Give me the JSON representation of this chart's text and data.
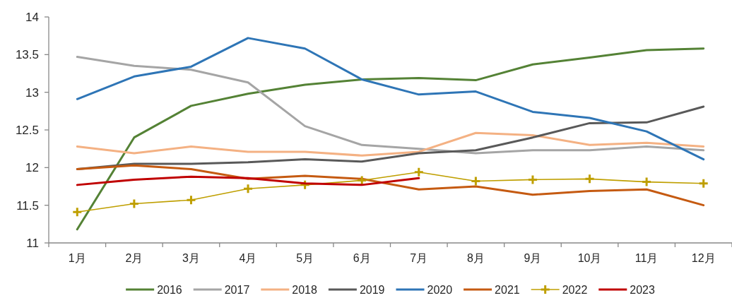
{
  "chart_data": {
    "type": "line",
    "categories": [
      "1月",
      "2月",
      "3月",
      "4月",
      "5月",
      "6月",
      "7月",
      "8月",
      "9月",
      "10月",
      "11月",
      "12月"
    ],
    "ylim": [
      11,
      14
    ],
    "yticks": [
      11,
      11.5,
      12,
      12.5,
      13,
      13.5,
      14
    ],
    "grid": false,
    "legend": "bottom",
    "series": [
      {
        "name": "2016",
        "color": "#548235",
        "values": [
          11.18,
          12.4,
          12.82,
          12.98,
          13.1,
          13.17,
          13.19,
          13.16,
          13.37,
          13.46,
          13.56,
          13.58
        ]
      },
      {
        "name": "2017",
        "color": "#a5a5a5",
        "values": [
          13.47,
          13.35,
          13.3,
          13.13,
          12.55,
          12.3,
          12.25,
          12.19,
          12.23,
          12.23,
          12.28,
          12.23
        ]
      },
      {
        "name": "2018",
        "color": "#f4b183",
        "values": [
          12.28,
          12.19,
          12.28,
          12.21,
          12.21,
          12.16,
          12.21,
          12.46,
          12.43,
          12.3,
          12.33,
          12.28
        ]
      },
      {
        "name": "2019",
        "color": "#595959",
        "values": [
          11.98,
          12.05,
          12.05,
          12.07,
          12.11,
          12.08,
          12.19,
          12.23,
          12.4,
          12.59,
          12.6,
          12.81
        ]
      },
      {
        "name": "2020",
        "color": "#2e75b6",
        "values": [
          12.91,
          13.21,
          13.34,
          13.72,
          13.58,
          13.17,
          12.97,
          13.01,
          12.74,
          12.66,
          12.48,
          12.11
        ]
      },
      {
        "name": "2021",
        "color": "#c55a11",
        "values": [
          11.98,
          12.03,
          11.98,
          11.85,
          11.89,
          11.85,
          11.71,
          11.75,
          11.64,
          11.69,
          11.71,
          11.5
        ]
      },
      {
        "name": "2022",
        "color": "#bf9f00",
        "marker": "cross",
        "values": [
          11.41,
          11.52,
          11.57,
          11.72,
          11.77,
          11.83,
          11.94,
          11.82,
          11.84,
          11.85,
          11.81,
          11.79
        ]
      },
      {
        "name": "2023",
        "color": "#c00000",
        "values": [
          11.77,
          11.84,
          11.88,
          11.86,
          11.79,
          11.77,
          11.86,
          null,
          null,
          null,
          null,
          null
        ]
      }
    ]
  }
}
